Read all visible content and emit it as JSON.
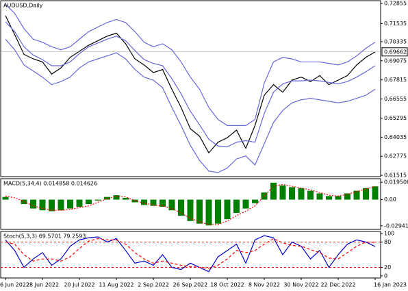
{
  "chart_data": [
    {
      "type": "line",
      "title": "AUDUSD,Daily",
      "ylim": [
        0.6143,
        0.7304
      ],
      "yticks": [
        0.72855,
        0.71535,
        0.70335,
        0.69075,
        0.67815,
        0.66555,
        0.65295,
        0.64035,
        0.62775,
        0.61515
      ],
      "current_price": 0.69662,
      "series": [
        {
          "color": "#000000",
          "style": "solid",
          "values": [
            0.7205,
            0.708,
            0.695,
            0.692,
            0.69,
            0.682,
            0.686,
            0.693,
            0.697,
            0.701,
            0.704,
            0.707,
            0.709,
            0.702,
            0.692,
            0.688,
            0.683,
            0.685,
            0.672,
            0.66,
            0.646,
            0.641,
            0.63,
            0.637,
            0.64,
            0.645,
            0.633,
            0.648,
            0.668,
            0.675,
            0.67,
            0.678,
            0.68,
            0.677,
            0.681,
            0.675,
            0.678,
            0.681,
            0.688,
            0.693,
            0.69662
          ]
        },
        {
          "color": "#6666dd",
          "style": "solid",
          "values": [
            0.728,
            0.722,
            0.712,
            0.705,
            0.703,
            0.7,
            0.698,
            0.7,
            0.705,
            0.71,
            0.713,
            0.716,
            0.718,
            0.716,
            0.71,
            0.703,
            0.7,
            0.702,
            0.698,
            0.69,
            0.68,
            0.672,
            0.66,
            0.652,
            0.648,
            0.648,
            0.648,
            0.652,
            0.676,
            0.69,
            0.693,
            0.692,
            0.69,
            0.69,
            0.69,
            0.689,
            0.688,
            0.69,
            0.694,
            0.699,
            0.703
          ]
        },
        {
          "color": "#6666dd",
          "style": "solid",
          "values": [
            0.7165,
            0.71,
            0.7,
            0.6945,
            0.6915,
            0.6875,
            0.6875,
            0.69,
            0.6955,
            0.7,
            0.7025,
            0.705,
            0.707,
            0.704,
            0.6975,
            0.6915,
            0.689,
            0.6875,
            0.679,
            0.669,
            0.6575,
            0.6485,
            0.639,
            0.6345,
            0.634,
            0.637,
            0.638,
            0.637,
            0.656,
            0.67,
            0.6755,
            0.6775,
            0.6775,
            0.678,
            0.6775,
            0.6765,
            0.6755,
            0.677,
            0.68,
            0.6835,
            0.6875
          ]
        },
        {
          "color": "#6666dd",
          "style": "solid",
          "values": [
            0.705,
            0.698,
            0.688,
            0.684,
            0.68,
            0.675,
            0.677,
            0.68,
            0.686,
            0.69,
            0.692,
            0.694,
            0.696,
            0.692,
            0.685,
            0.68,
            0.678,
            0.673,
            0.66,
            0.648,
            0.635,
            0.625,
            0.618,
            0.617,
            0.62,
            0.626,
            0.628,
            0.622,
            0.636,
            0.65,
            0.658,
            0.663,
            0.665,
            0.666,
            0.665,
            0.664,
            0.663,
            0.664,
            0.666,
            0.668,
            0.672
          ]
        }
      ]
    },
    {
      "type": "bar",
      "title": "MACD(5,34,4) 0.014858 0.014626",
      "ylim": [
        -0.0334,
        0.0235
      ],
      "yticks": [
        0.019508,
        {
          "value": 0,
          "label": "0.00"
        },
        -0.029414
      ],
      "series": [
        {
          "color": "#008000",
          "style": "bar",
          "values": [
            0.003,
            0.0,
            -0.005,
            -0.01,
            -0.012,
            -0.013,
            -0.012,
            -0.01,
            -0.008,
            -0.005,
            -0.001,
            0.003,
            0.005,
            0.002,
            -0.003,
            -0.006,
            -0.007,
            -0.008,
            -0.012,
            -0.018,
            -0.024,
            -0.027,
            -0.029,
            -0.027,
            -0.022,
            -0.015,
            -0.01,
            -0.004,
            0.008,
            0.019,
            0.016,
            0.014,
            0.013,
            0.01,
            0.007,
            0.004,
            0.004,
            0.007,
            0.01,
            0.013,
            0.014858
          ]
        },
        {
          "color": "#ff0000",
          "style": "dotted",
          "values": [
            0.004,
            0.002,
            -0.002,
            -0.007,
            -0.01,
            -0.012,
            -0.012,
            -0.011,
            -0.009,
            -0.007,
            -0.003,
            0.001,
            0.004,
            0.003,
            -0.001,
            -0.004,
            -0.006,
            -0.007,
            -0.01,
            -0.015,
            -0.021,
            -0.025,
            -0.028,
            -0.028,
            -0.024,
            -0.018,
            -0.013,
            -0.007,
            0.004,
            0.015,
            0.017,
            0.015,
            0.013,
            0.011,
            0.008,
            0.005,
            0.004,
            0.006,
            0.009,
            0.012,
            0.014626
          ]
        }
      ]
    },
    {
      "type": "line",
      "title": "Stoch(5,3,3) 69.5701 79.2593",
      "ylim": [
        -5,
        105
      ],
      "yticks": [
        100,
        80,
        20,
        0
      ],
      "levels": [
        80,
        20
      ],
      "level_color": "#ff0000",
      "categories": [
        "6 Jun 2022",
        null,
        null,
        null,
        "28 Jun 2022",
        null,
        null,
        null,
        "20 Jul 2022",
        null,
        null,
        null,
        "11 Aug 2022",
        null,
        null,
        null,
        "2 Sep 2022",
        null,
        null,
        null,
        "26 Sep 2022",
        null,
        null,
        null,
        "18 Oct 2022",
        null,
        null,
        null,
        "8 Nov 2022",
        null,
        null,
        null,
        "30 Nov 2022",
        null,
        null,
        null,
        "22 Dec 2022",
        null,
        null,
        null,
        "16 Jan 2023"
      ],
      "series": [
        {
          "color": "#0000cc",
          "style": "solid",
          "values": [
            85,
            60,
            20,
            40,
            55,
            25,
            40,
            70,
            85,
            90,
            92,
            80,
            88,
            60,
            30,
            35,
            25,
            50,
            20,
            15,
            30,
            20,
            10,
            45,
            60,
            75,
            30,
            85,
            95,
            90,
            50,
            80,
            70,
            40,
            60,
            20,
            50,
            75,
            85,
            80,
            69.5701
          ]
        },
        {
          "color": "#ff0000",
          "style": "dashed",
          "values": [
            80,
            75,
            50,
            35,
            40,
            40,
            35,
            45,
            65,
            82,
            88,
            85,
            85,
            75,
            55,
            40,
            30,
            35,
            30,
            25,
            22,
            20,
            18,
            25,
            40,
            60,
            55,
            60,
            75,
            88,
            78,
            72,
            70,
            62,
            55,
            42,
            40,
            55,
            70,
            80,
            79.2593
          ]
        }
      ]
    }
  ]
}
